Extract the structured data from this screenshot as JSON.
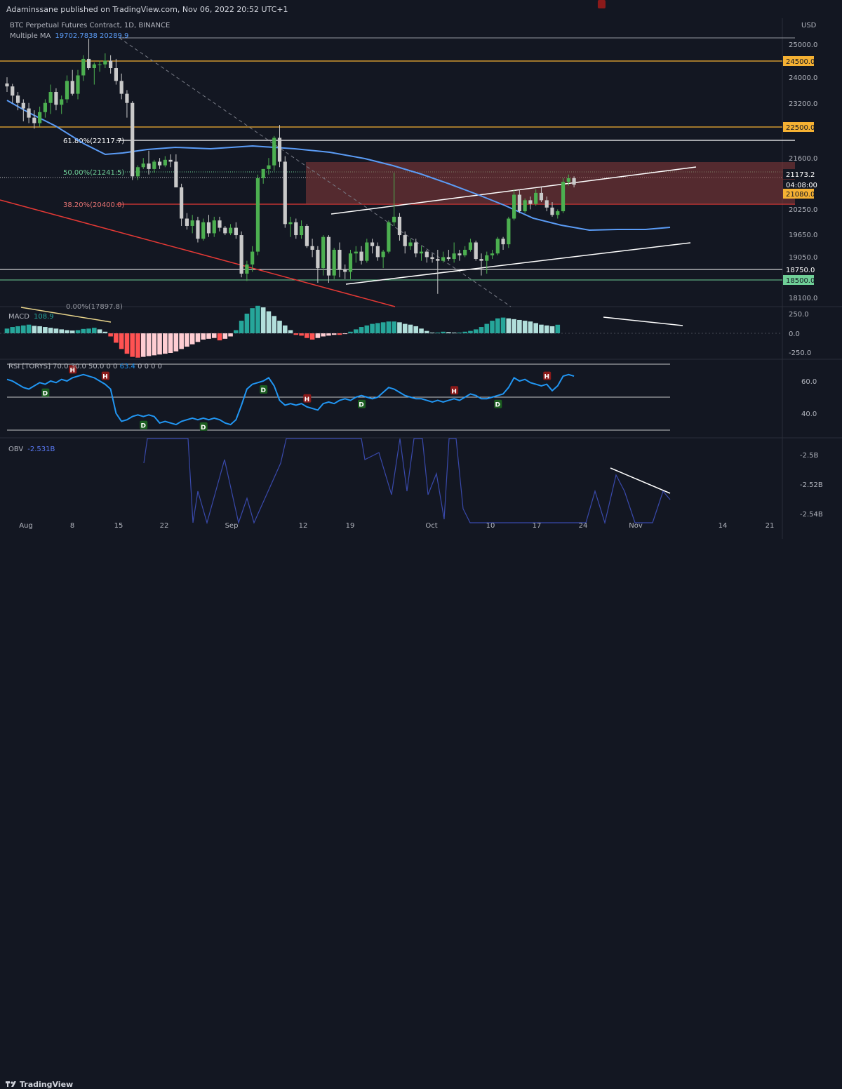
{
  "header": {
    "published": "Adaminssane published on TradingView.com, Nov 06, 2022 20:52 UTC+1",
    "symbol": "BTC Perpetual Futures Contract, 1D, BINANCE",
    "ma_label": "Multiple MA",
    "ma_values": "19702.7838 20289.9",
    "currency": "USD"
  },
  "price_axis": {
    "ticks": [
      "25000.0",
      "24000.0",
      "23200.0",
      "21600.0",
      "20250.0",
      "19650.0",
      "19050.0",
      "18100.0"
    ],
    "badges": [
      {
        "label": "24500.0",
        "color": "#f5b133"
      },
      {
        "label": "22500.0",
        "color": "#f5b133"
      },
      {
        "label": "21173.2",
        "color": "#ffffff"
      },
      {
        "label": "04:08:00",
        "color": "#ffffff"
      },
      {
        "label": "21080.0",
        "color": "#f5b133"
      },
      {
        "label": "18750.0",
        "color": "#ffffff"
      },
      {
        "label": "18500.0",
        "color": "#6fcf97"
      }
    ]
  },
  "fib_labels": {
    "f618": "61.80%(22117.7)",
    "f50": "50.00%(21241.5)",
    "f382": "38.20%(20400.0)",
    "f0": "0.00%(17897.8)"
  },
  "macd": {
    "label": "MACD",
    "value": "108.9",
    "ticks": [
      "250.0",
      "0.0",
      "-250.0"
    ]
  },
  "rsi": {
    "label": "RSI [TORYS]",
    "params": "70.0 30.0 50.0 0 0",
    "value": "63.4",
    "extra": "0 0 0 0",
    "ticks": [
      "60.0",
      "40.0"
    ],
    "markers": [
      {
        "type": "H"
      },
      {
        "type": "H"
      },
      {
        "type": "H"
      },
      {
        "type": "H"
      },
      {
        "type": "H"
      },
      {
        "type": "H"
      },
      {
        "type": "D"
      },
      {
        "type": "D"
      },
      {
        "type": "D"
      },
      {
        "type": "D"
      },
      {
        "type": "D"
      },
      {
        "type": "D"
      }
    ]
  },
  "obv": {
    "label": "OBV",
    "value": "-2.531B",
    "ticks": [
      "-2.5B",
      "-2.52B",
      "-2.54B"
    ]
  },
  "time_axis": [
    "Aug",
    "8",
    "15",
    "22",
    "Sep",
    "12",
    "19",
    "Oct",
    "10",
    "17",
    "24",
    "Nov",
    "14",
    "21"
  ],
  "footer": {
    "brand": "TradingView"
  },
  "colors": {
    "background": "#131722",
    "up": "#4caf50",
    "down": "#c9c9c9",
    "ma": "#5b9cf6",
    "resistance": "#f5b133",
    "zone": "#8b3a3a",
    "downtrend": "#e53935"
  }
}
